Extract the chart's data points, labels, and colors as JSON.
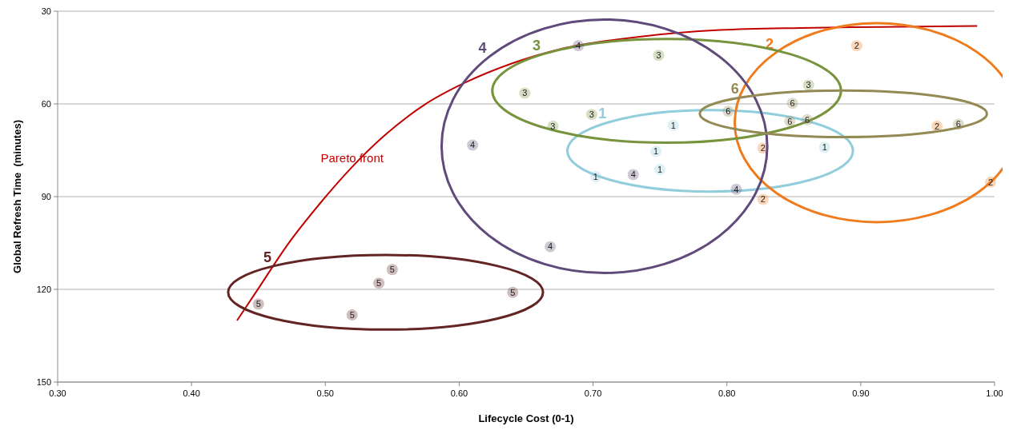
{
  "chart_data": {
    "type": "scatter",
    "xlabel": "Lifecycle Cost (0-1)",
    "ylabel": "Global Refresh Time  (minutes)",
    "xlim": [
      0.3,
      1.0
    ],
    "xticks": [
      {
        "value": 0.3,
        "label": "0.30"
      },
      {
        "value": 0.4,
        "label": "0.40"
      },
      {
        "value": 0.5,
        "label": "0.50"
      },
      {
        "value": 0.6,
        "label": "0.60"
      },
      {
        "value": 0.7,
        "label": "0.70"
      },
      {
        "value": 0.8,
        "label": "0.80"
      },
      {
        "value": 0.9,
        "label": "0.90"
      },
      {
        "value": 1.0,
        "label": "1.00"
      }
    ],
    "ylim": [
      150,
      30
    ],
    "yticks": [
      30,
      60,
      90,
      120,
      150
    ],
    "grid": "y",
    "legend": false,
    "annotations": [
      {
        "text": "Pareto front",
        "x": 0.52,
        "y": 79
      }
    ],
    "series": [
      {
        "type": "line",
        "color": "#c00000",
        "x": [
          0.434,
          0.45,
          0.472,
          0.496,
          0.52,
          0.544,
          0.574,
          0.604,
          0.64,
          0.676,
          0.736,
          0.795,
          0.855,
          0.915,
          0.987
        ],
        "values": [
          130.1,
          119.7,
          105.4,
          92.2,
          80.4,
          70.3,
          60.3,
          53.2,
          46.8,
          42.2,
          38.2,
          36.1,
          35.4,
          35.1,
          34.8
        ]
      },
      {
        "name": "1",
        "color": "#92cddc",
        "x": [
          0.76,
          0.747,
          0.873,
          0.702,
          0.75
        ],
        "values": [
          66.9,
          75.4,
          74.1,
          83.5,
          81.2
        ]
      },
      {
        "name": "2",
        "color": "#f07b1c",
        "x": [
          0.897,
          0.957,
          0.827,
          0.827,
          0.997
        ],
        "values": [
          41.2,
          67.2,
          74.3,
          90.9,
          85.3
        ]
      },
      {
        "name": "3",
        "color": "#77933c",
        "x": [
          0.749,
          0.649,
          0.699,
          0.67,
          0.861
        ],
        "values": [
          44.3,
          56.5,
          63.4,
          67.2,
          53.9
        ]
      },
      {
        "name": "4",
        "color": "#604a7b",
        "x": [
          0.689,
          0.61,
          0.73,
          0.807,
          0.668
        ],
        "values": [
          41.2,
          73.3,
          82.9,
          87.6,
          106.2
        ]
      },
      {
        "name": "5",
        "color": "#632523",
        "x": [
          0.55,
          0.54,
          0.45,
          0.52,
          0.64
        ],
        "values": [
          113.6,
          118.0,
          124.8,
          128.3,
          121.0
        ]
      },
      {
        "name": "6",
        "color": "#948a54",
        "x": [
          0.801,
          0.849,
          0.847,
          0.86,
          0.973
        ],
        "values": [
          62.4,
          59.8,
          65.6,
          65.1,
          66.6
        ]
      }
    ]
  }
}
